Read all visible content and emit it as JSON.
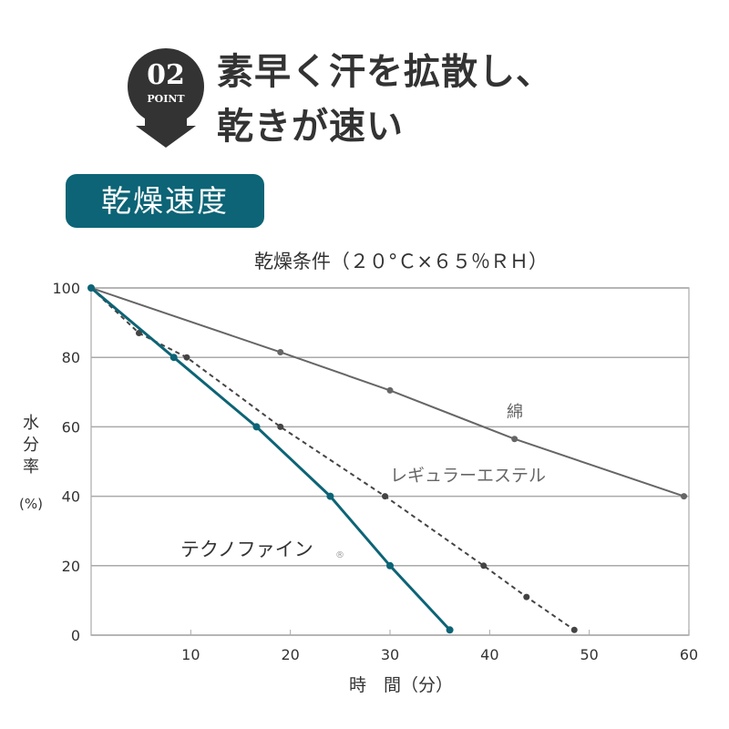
{
  "badge": {
    "number": "02",
    "label": "POINT"
  },
  "heading": {
    "line1": "素早く汗を拡散し、",
    "line2": "乾きが速い"
  },
  "section_label": "乾燥速度",
  "colors": {
    "teal": "#0c6476",
    "gray": "#666666",
    "dark": "#333333"
  },
  "chart_data": {
    "type": "line",
    "title": "乾燥条件（２０°Ｃ×６５％ＲＨ）",
    "xlabel": "時　間（分）",
    "ylabel": [
      "水",
      "分",
      "率",
      "(%)"
    ],
    "xlim": [
      0,
      60
    ],
    "ylim": [
      0,
      100
    ],
    "xticks": [
      10,
      20,
      30,
      40,
      50,
      60
    ],
    "yticks": [
      0,
      20,
      40,
      60,
      80,
      100
    ],
    "grid": "horizontal",
    "series": [
      {
        "name": "綿",
        "style": "solid",
        "color": "#666666",
        "x": [
          0,
          19,
          30,
          42.5,
          59.5
        ],
        "y": [
          100,
          81.5,
          70.5,
          56.5,
          40
        ]
      },
      {
        "name": "レギュラーエステル",
        "style": "dashed",
        "color": "#444444",
        "x": [
          0,
          4.8,
          9.6,
          19,
          29.5,
          39.4,
          43.7,
          48.5
        ],
        "y": [
          100,
          87,
          80,
          60,
          40,
          20,
          11,
          1.5
        ]
      },
      {
        "name": "テクノファイン",
        "style": "solid",
        "color": "#0c6476",
        "x": [
          0,
          8.3,
          16.6,
          24,
          30,
          36
        ],
        "y": [
          100,
          80,
          60,
          40,
          20,
          1.5
        ]
      }
    ],
    "registered_mark": "®"
  }
}
